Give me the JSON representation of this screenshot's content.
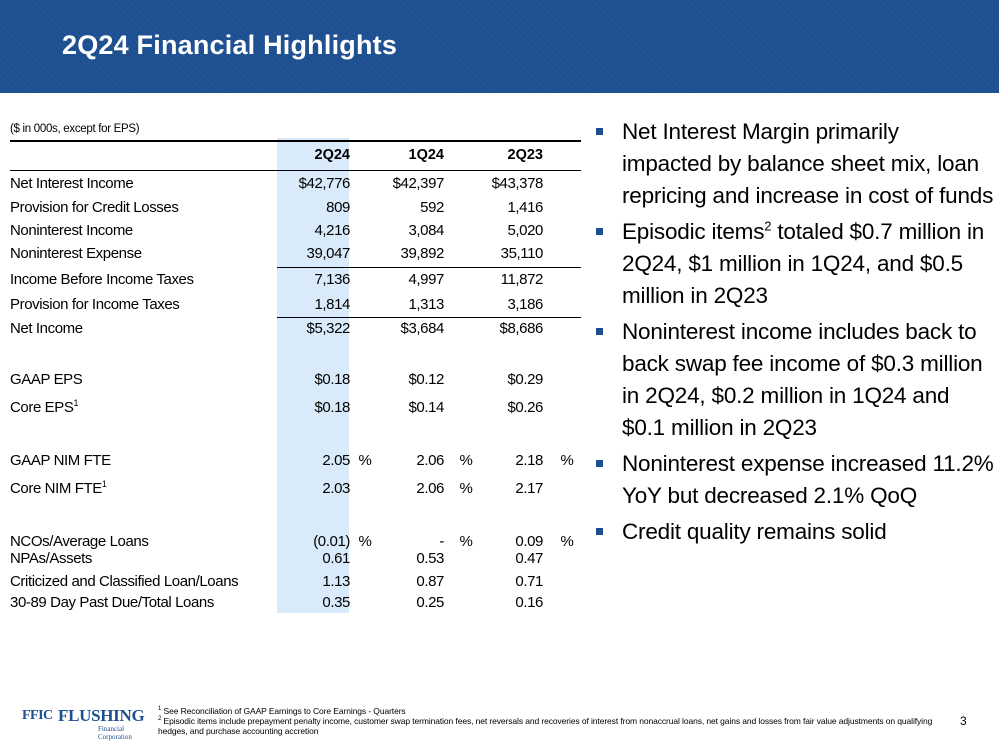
{
  "header": {
    "title": "2Q24 Financial Highlights"
  },
  "table": {
    "units_note": "($ in 000s, except for EPS)",
    "columns": [
      "2Q24",
      "1Q24",
      "2Q23"
    ],
    "rows": [
      {
        "label": "Net Interest Income",
        "values": [
          "$42,776",
          "$42,397",
          "$43,378"
        ]
      },
      {
        "label": "Provision for Credit Losses",
        "values": [
          "809",
          "592",
          "1,416"
        ]
      },
      {
        "label": "Noninterest Income",
        "values": [
          "4,216",
          "3,084",
          "5,020"
        ]
      },
      {
        "label": "Noninterest Expense",
        "values": [
          "39,047",
          "39,892",
          "35,110"
        ]
      },
      {
        "label": "Income Before Income Taxes",
        "values": [
          "7,136",
          "4,997",
          "11,872"
        ]
      },
      {
        "label": "Provision for Income Taxes",
        "values": [
          "1,814",
          "1,313",
          "3,186"
        ]
      },
      {
        "label": "Net Income",
        "values": [
          "$5,322",
          "$3,684",
          "$8,686"
        ]
      }
    ],
    "eps": [
      {
        "label": "GAAP EPS",
        "sup": "",
        "values": [
          "$0.18",
          "$0.12",
          "$0.29"
        ]
      },
      {
        "label": "Core EPS",
        "sup": "1",
        "values": [
          "$0.18",
          "$0.14",
          "$0.26"
        ]
      }
    ],
    "nim": [
      {
        "label": "GAAP NIM FTE",
        "sup": "",
        "values": [
          "2.05",
          "2.06",
          "2.18"
        ],
        "pct": [
          "%",
          "%",
          "%"
        ]
      },
      {
        "label": "Core NIM FTE",
        "sup": "1",
        "values": [
          "2.03",
          "2.06",
          "2.17"
        ],
        "pct": [
          "",
          "%",
          ""
        ]
      }
    ],
    "credit": [
      {
        "label": "NCOs/Average Loans",
        "values": [
          "(0.01)",
          "-",
          "0.09"
        ],
        "pct": [
          "%",
          "%",
          "%"
        ]
      },
      {
        "label": "NPAs/Assets",
        "values": [
          "0.61",
          "0.53",
          "0.47"
        ]
      },
      {
        "label": "Criticized and Classified Loan/Loans",
        "values": [
          "1.13",
          "0.87",
          "0.71"
        ]
      },
      {
        "label": "30-89 Day Past Due/Total Loans",
        "values": [
          "0.35",
          "0.25",
          "0.16"
        ]
      }
    ]
  },
  "bullets": [
    {
      "text": "Net Interest Margin primarily impacted by balance sheet mix, loan repricing and increase in cost of funds"
    },
    {
      "pre": "Episodic items",
      "sup": "2",
      "post": " totaled $0.7 million in 2Q24, $1 million in 1Q24, and $0.5 million in 2Q23"
    },
    {
      "text": "Noninterest income includes back to back swap fee income of $0.3 million in 2Q24, $0.2 million in 1Q24 and $0.1 million in 2Q23"
    },
    {
      "text": "Noninterest expense increased 11.2% YoY but decreased 2.1% QoQ"
    },
    {
      "text": "Credit quality remains solid"
    }
  ],
  "footer": {
    "logo": {
      "ffic": "FFIC",
      "name": "FLUSHING",
      "sub": "Financial Corporation"
    },
    "notes": [
      {
        "num": "1",
        "text": "See Reconciliation of GAAP Earnings to Core Earnings - Quarters"
      },
      {
        "num": "2",
        "text": "Episodic items include prepayment penalty income, customer swap termination fees, net reversals and recoveries of interest from nonaccrual loans, net gains and losses from fair value adjustments on qualifying hedges, and purchase accounting accretion"
      }
    ],
    "page_number": "3"
  },
  "colors": {
    "brand_blue": "#1d4f91",
    "highlight": "#d9ebfa"
  }
}
